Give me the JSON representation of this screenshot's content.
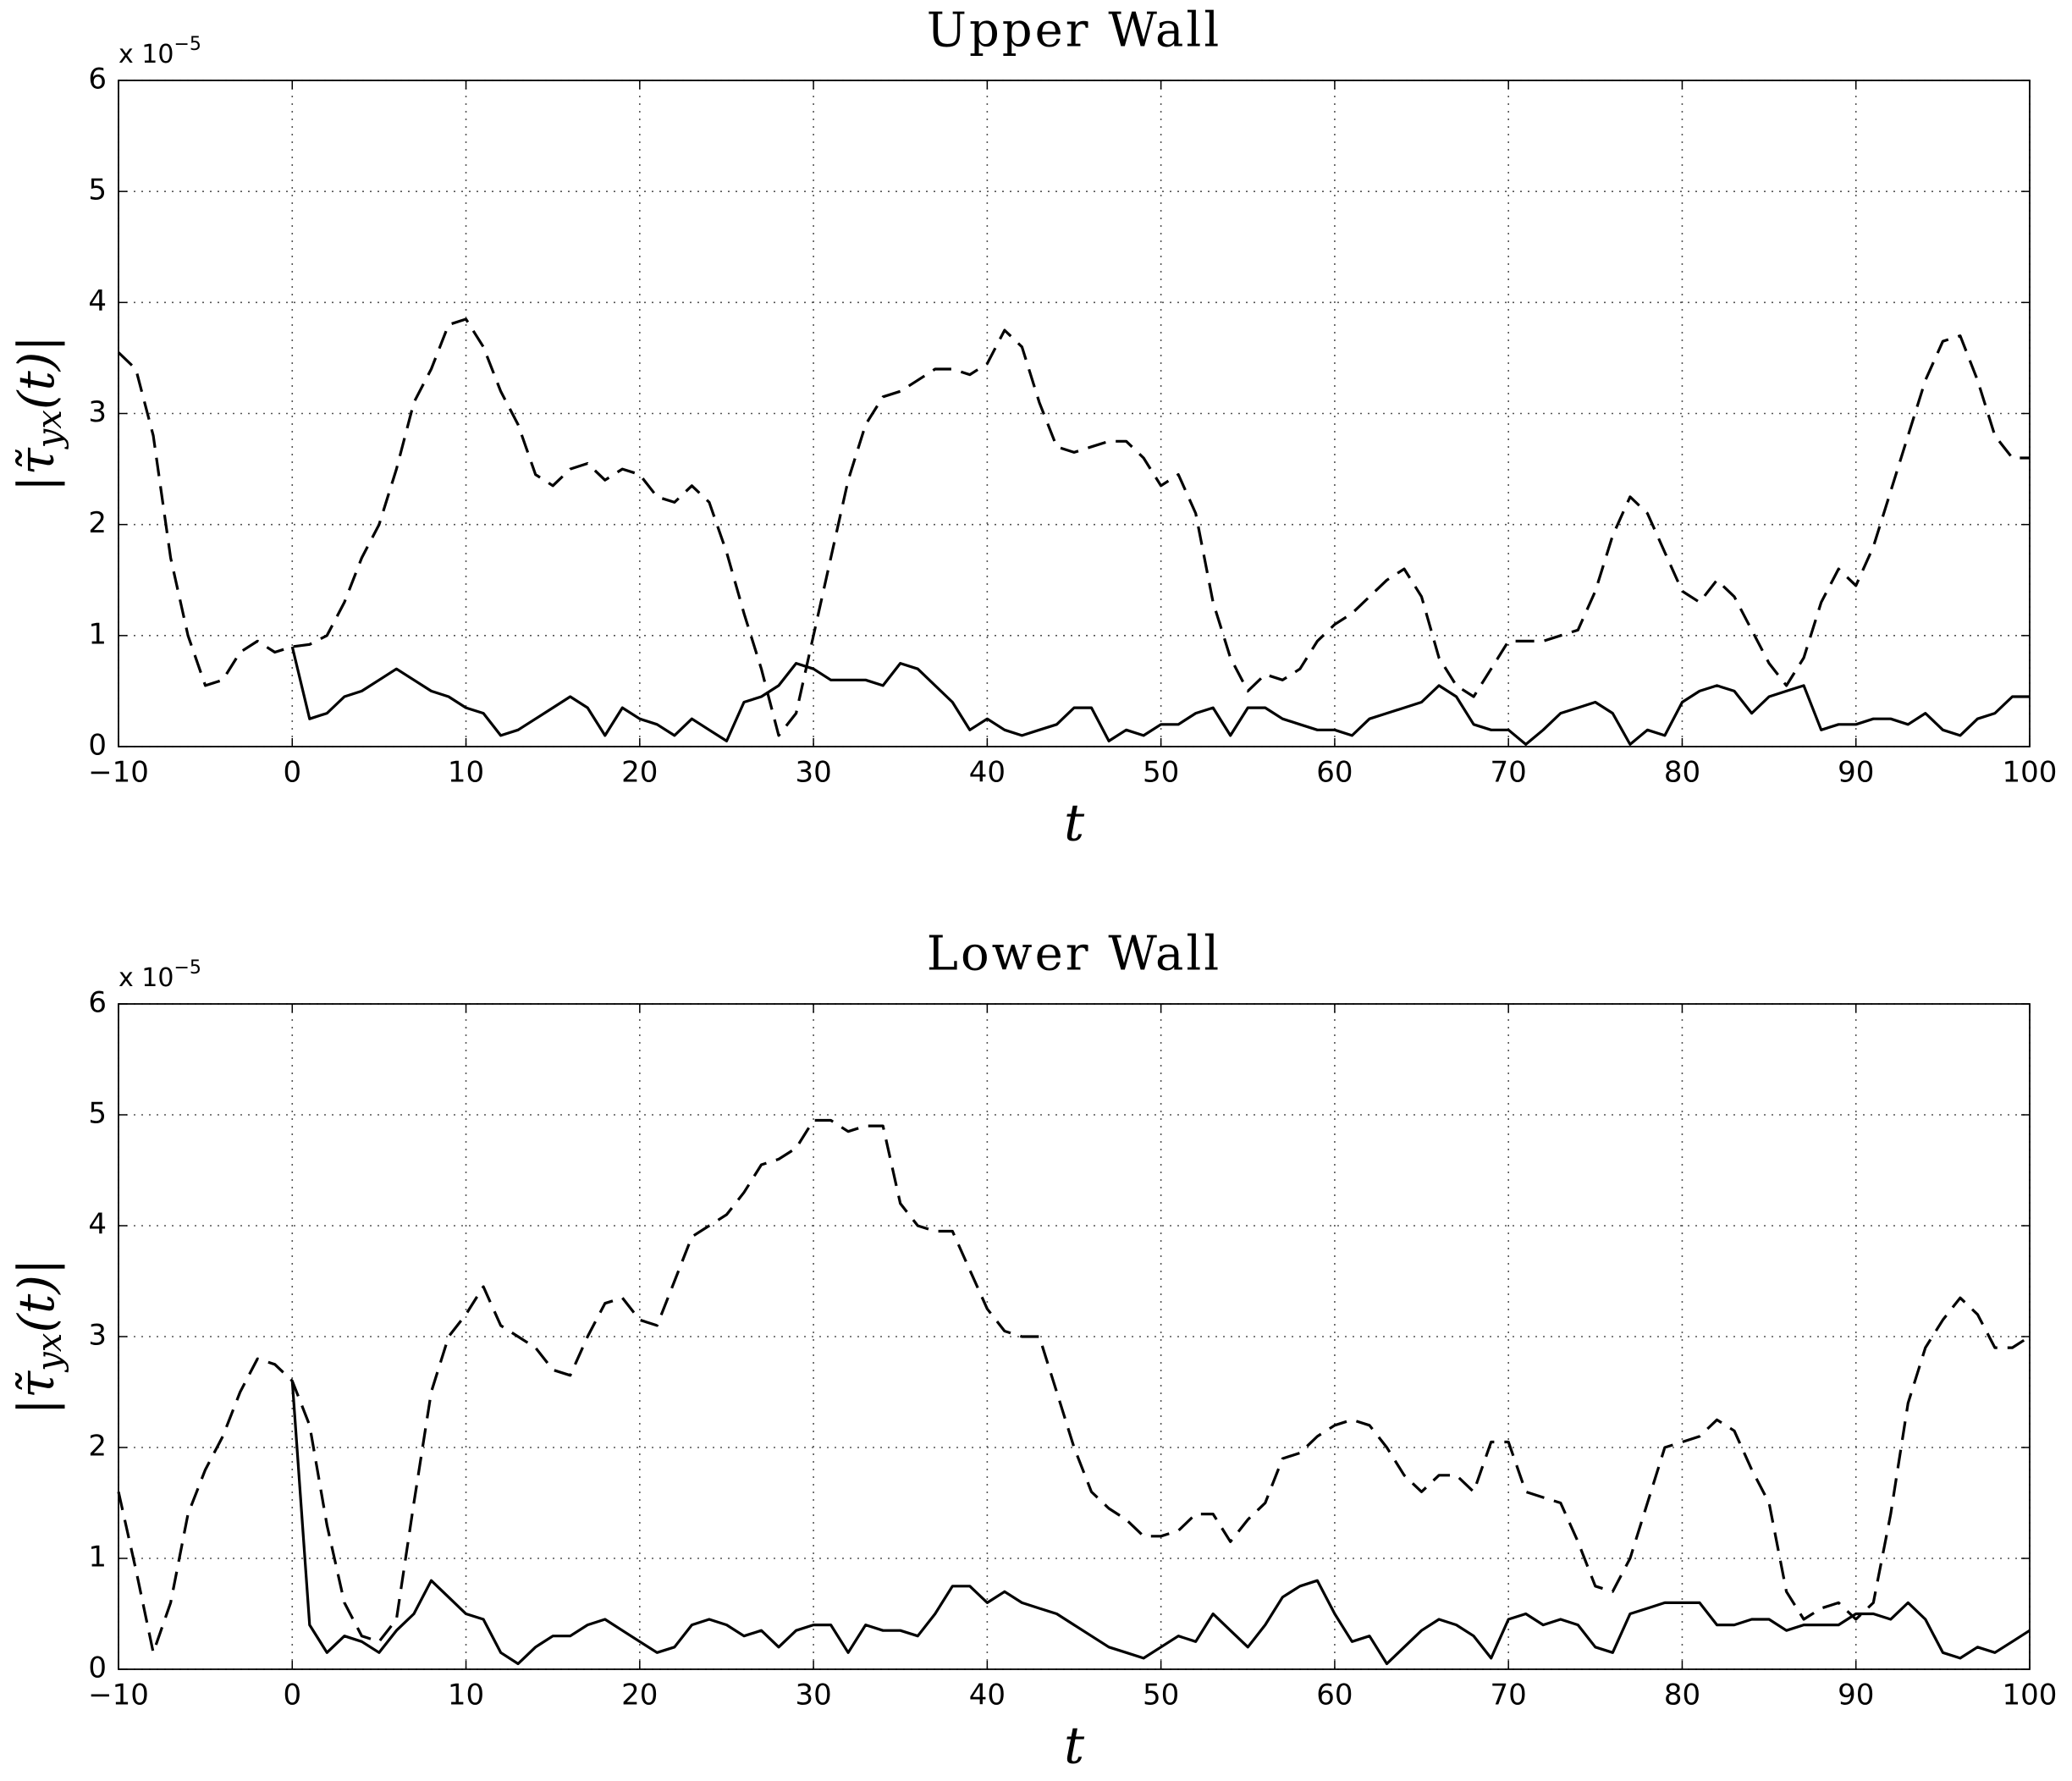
{
  "chart_data": [
    {
      "type": "line",
      "title": "Upper Wall",
      "xlabel": "t",
      "ylabel": [
        "|τ̃",
        "yx",
        "(t)|"
      ],
      "y_multiplier": "x 10",
      "y_exponent": "−5",
      "xlim": [
        -10,
        100
      ],
      "ylim": [
        0,
        6
      ],
      "xticks": [
        {
          "value": -10,
          "label": "−10"
        },
        0,
        10,
        20,
        30,
        40,
        50,
        60,
        70,
        80,
        90,
        100
      ],
      "yticks": [
        0,
        1,
        2,
        3,
        4,
        5,
        6
      ],
      "grid": true,
      "x": [
        -10,
        -9,
        -8,
        -7,
        -6,
        -5,
        -4,
        -3,
        -2,
        -1,
        0,
        1,
        2,
        3,
        4,
        5,
        6,
        7,
        8,
        9,
        10,
        11,
        12,
        13,
        14,
        15,
        16,
        17,
        18,
        19,
        20,
        21,
        22,
        23,
        24,
        25,
        26,
        27,
        28,
        29,
        30,
        31,
        32,
        33,
        34,
        35,
        36,
        37,
        38,
        39,
        40,
        41,
        42,
        43,
        44,
        45,
        46,
        47,
        48,
        49,
        50,
        51,
        52,
        53,
        54,
        55,
        56,
        57,
        58,
        59,
        60,
        61,
        62,
        63,
        64,
        65,
        66,
        67,
        68,
        69,
        70,
        71,
        72,
        73,
        74,
        75,
        76,
        77,
        78,
        79,
        80,
        81,
        82,
        83,
        84,
        85,
        86,
        87,
        88,
        89,
        90,
        91,
        92,
        93,
        94,
        95,
        96,
        97,
        98,
        99,
        100
      ],
      "series": [
        {
          "color": "#000000",
          "style": "dashed",
          "values": [
            3.55,
            3.4,
            2.8,
            1.7,
            1.0,
            0.55,
            0.6,
            0.85,
            0.95,
            0.85,
            0.9,
            0.92,
            1.0,
            1.3,
            1.7,
            2.0,
            2.5,
            3.1,
            3.4,
            3.8,
            3.85,
            3.6,
            3.2,
            2.9,
            2.45,
            2.35,
            2.5,
            2.55,
            2.4,
            2.5,
            2.45,
            2.25,
            2.2,
            2.35,
            2.2,
            1.75,
            1.2,
            0.7,
            0.1,
            0.3,
            1.0,
            1.7,
            2.4,
            2.9,
            3.15,
            3.2,
            3.3,
            3.4,
            3.4,
            3.35,
            3.45,
            3.75,
            3.6,
            3.1,
            2.7,
            2.65,
            2.7,
            2.75,
            2.75,
            2.6,
            2.35,
            2.45,
            2.1,
            1.3,
            0.8,
            0.5,
            0.65,
            0.6,
            0.7,
            0.95,
            1.1,
            1.2,
            1.35,
            1.5,
            1.6,
            1.35,
            0.8,
            0.55,
            0.45,
            0.7,
            0.95,
            0.95,
            0.95,
            1.0,
            1.05,
            1.4,
            1.9,
            2.25,
            2.1,
            1.75,
            1.4,
            1.3,
            1.5,
            1.35,
            1.05,
            0.75,
            0.55,
            0.8,
            1.3,
            1.6,
            1.45,
            1.8,
            2.3,
            2.8,
            3.3,
            3.65,
            3.7,
            3.3,
            2.8,
            2.6,
            2.6
          ]
        },
        {
          "color": "#000000",
          "style": "solid",
          "values": [
            null,
            null,
            null,
            null,
            null,
            null,
            null,
            null,
            null,
            null,
            0.9,
            0.25,
            0.3,
            0.45,
            0.5,
            0.6,
            0.7,
            0.6,
            0.5,
            0.45,
            0.35,
            0.3,
            0.1,
            0.15,
            0.25,
            0.35,
            0.45,
            0.35,
            0.1,
            0.35,
            0.25,
            0.2,
            0.1,
            0.25,
            0.15,
            0.05,
            0.4,
            0.45,
            0.55,
            0.75,
            0.7,
            0.6,
            0.6,
            0.6,
            0.55,
            0.75,
            0.7,
            0.55,
            0.4,
            0.15,
            0.25,
            0.15,
            0.1,
            0.15,
            0.2,
            0.35,
            0.35,
            0.05,
            0.15,
            0.1,
            0.2,
            0.2,
            0.3,
            0.35,
            0.1,
            0.35,
            0.35,
            0.25,
            0.2,
            0.15,
            0.15,
            0.1,
            0.25,
            0.3,
            0.35,
            0.4,
            0.55,
            0.45,
            0.2,
            0.15,
            0.15,
            0.02,
            0.15,
            0.3,
            0.35,
            0.4,
            0.3,
            0.02,
            0.15,
            0.1,
            0.4,
            0.5,
            0.55,
            0.5,
            0.3,
            0.45,
            0.5,
            0.55,
            0.15,
            0.2,
            0.2,
            0.25,
            0.25,
            0.2,
            0.3,
            0.15,
            0.1,
            0.25,
            0.3,
            0.45,
            0.45
          ]
        }
      ]
    },
    {
      "type": "line",
      "title": "Lower Wall",
      "xlabel": "t",
      "ylabel": [
        "|τ̃",
        "yx",
        "(t)|"
      ],
      "y_multiplier": "x 10",
      "y_exponent": "−5",
      "xlim": [
        -10,
        100
      ],
      "ylim": [
        0,
        6
      ],
      "xticks": [
        {
          "value": -10,
          "label": "−10"
        },
        0,
        10,
        20,
        30,
        40,
        50,
        60,
        70,
        80,
        90,
        100
      ],
      "yticks": [
        0,
        1,
        2,
        3,
        4,
        5,
        6
      ],
      "grid": true,
      "x": [
        -10,
        -9,
        -8,
        -7,
        -6,
        -5,
        -4,
        -3,
        -2,
        -1,
        0,
        1,
        2,
        3,
        4,
        5,
        6,
        7,
        8,
        9,
        10,
        11,
        12,
        13,
        14,
        15,
        16,
        17,
        18,
        19,
        20,
        21,
        22,
        23,
        24,
        25,
        26,
        27,
        28,
        29,
        30,
        31,
        32,
        33,
        34,
        35,
        36,
        37,
        38,
        39,
        40,
        41,
        42,
        43,
        44,
        45,
        46,
        47,
        48,
        49,
        50,
        51,
        52,
        53,
        54,
        55,
        56,
        57,
        58,
        59,
        60,
        61,
        62,
        63,
        64,
        65,
        66,
        67,
        68,
        69,
        70,
        71,
        72,
        73,
        74,
        75,
        76,
        77,
        78,
        79,
        80,
        81,
        82,
        83,
        84,
        85,
        86,
        87,
        88,
        89,
        90,
        91,
        92,
        93,
        94,
        95,
        96,
        97,
        98,
        99,
        100
      ],
      "series": [
        {
          "color": "#000000",
          "style": "dashed",
          "values": [
            1.6,
            0.9,
            0.15,
            0.6,
            1.4,
            1.8,
            2.1,
            2.5,
            2.8,
            2.75,
            2.6,
            2.2,
            1.3,
            0.6,
            0.3,
            0.25,
            0.45,
            1.5,
            2.5,
            3.0,
            3.2,
            3.45,
            3.1,
            3.0,
            2.9,
            2.7,
            2.65,
            3.0,
            3.3,
            3.35,
            3.15,
            3.1,
            3.5,
            3.9,
            4.0,
            4.1,
            4.3,
            4.55,
            4.6,
            4.7,
            4.95,
            4.95,
            4.85,
            4.9,
            4.9,
            4.2,
            4.0,
            3.95,
            3.95,
            3.6,
            3.25,
            3.05,
            3.0,
            3.0,
            2.5,
            2.0,
            1.6,
            1.45,
            1.35,
            1.2,
            1.2,
            1.25,
            1.4,
            1.4,
            1.15,
            1.35,
            1.5,
            1.9,
            1.95,
            2.1,
            2.2,
            2.25,
            2.2,
            2.0,
            1.75,
            1.6,
            1.75,
            1.75,
            1.6,
            2.05,
            2.05,
            1.6,
            1.55,
            1.5,
            1.15,
            0.75,
            0.7,
            1.0,
            1.5,
            2.0,
            2.05,
            2.1,
            2.25,
            2.15,
            1.8,
            1.5,
            0.7,
            0.45,
            0.55,
            0.6,
            0.45,
            0.6,
            1.4,
            2.4,
            2.9,
            3.15,
            3.35,
            3.2,
            2.9,
            2.9,
            3.0
          ]
        },
        {
          "color": "#000000",
          "style": "solid",
          "values": [
            null,
            null,
            null,
            null,
            null,
            null,
            null,
            null,
            null,
            null,
            2.6,
            0.4,
            0.15,
            0.3,
            0.25,
            0.15,
            0.35,
            0.5,
            0.8,
            0.65,
            0.5,
            0.45,
            0.15,
            0.05,
            0.2,
            0.3,
            0.3,
            0.4,
            0.45,
            0.35,
            0.25,
            0.15,
            0.2,
            0.4,
            0.45,
            0.4,
            0.3,
            0.35,
            0.2,
            0.35,
            0.4,
            0.4,
            0.15,
            0.4,
            0.35,
            0.35,
            0.3,
            0.5,
            0.75,
            0.75,
            0.6,
            0.7,
            0.6,
            0.55,
            0.5,
            0.4,
            0.3,
            0.2,
            0.15,
            0.1,
            0.2,
            0.3,
            0.25,
            0.5,
            0.35,
            0.2,
            0.4,
            0.65,
            0.75,
            0.8,
            0.5,
            0.25,
            0.3,
            0.05,
            0.2,
            0.35,
            0.45,
            0.4,
            0.3,
            0.1,
            0.45,
            0.5,
            0.4,
            0.45,
            0.4,
            0.2,
            0.15,
            0.5,
            0.55,
            0.6,
            0.6,
            0.6,
            0.4,
            0.4,
            0.45,
            0.45,
            0.35,
            0.4,
            0.4,
            0.4,
            0.5,
            0.5,
            0.45,
            0.6,
            0.45,
            0.15,
            0.1,
            0.2,
            0.15,
            0.25,
            0.35
          ]
        }
      ]
    }
  ]
}
